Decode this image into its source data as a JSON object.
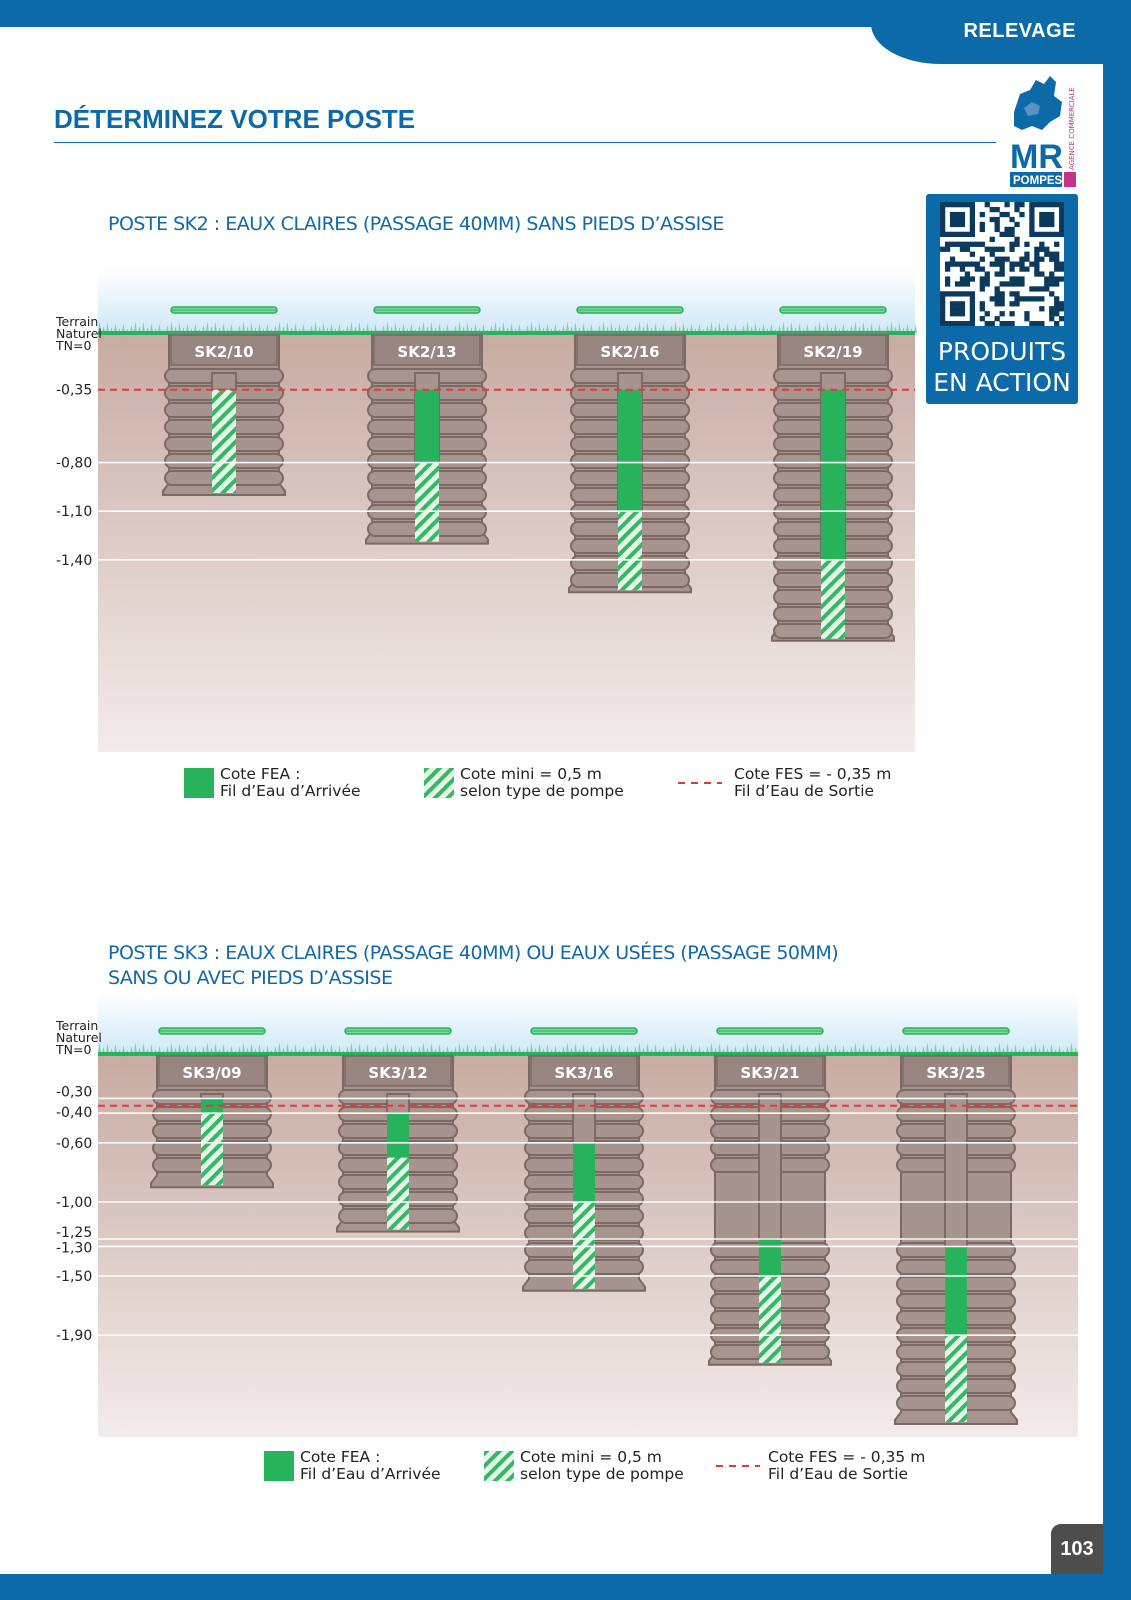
{
  "header": {
    "section": "RELEVAGE",
    "title": "DÉTERMINEZ VOTRE POSTE"
  },
  "brand": {
    "logo_text": "MR",
    "logo_sub": "POMPES",
    "logo_tagline": "AGENCE COMMERCIALE",
    "qr_caption_line1": "PRODUITS",
    "qr_caption_line2": "EN ACTION"
  },
  "colors": {
    "brand_blue": "#0d6aa8",
    "fea_green": "#27b35b",
    "fes_red": "#e03a3e",
    "tank_brown": "#a8948e"
  },
  "sections": [
    {
      "title_lines": [
        "POSTE SK2 : EAUX CLAIRES (PASSAGE 40MM) SANS PIEDS D’ASSISE"
      ],
      "ground_label": [
        "Terrain",
        "Naturel",
        "TN=0"
      ],
      "depth_levels": [
        {
          "label": "-0,35",
          "value": -0.35,
          "fes": true
        },
        {
          "label": "-0,80",
          "value": -0.8
        },
        {
          "label": "-1,10",
          "value": -1.1
        },
        {
          "label": "-1,40",
          "value": -1.4
        }
      ],
      "posts": [
        {
          "name": "SK2/10",
          "depth": 1.0,
          "fea": -0.35,
          "mini": 0.5
        },
        {
          "name": "SK2/13",
          "depth": 1.3,
          "fea": -0.8,
          "mini": 0.5
        },
        {
          "name": "SK2/16",
          "depth": 1.6,
          "fea": -1.1,
          "mini": 0.5
        },
        {
          "name": "SK2/19",
          "depth": 1.9,
          "fea": -1.4,
          "mini": 0.5
        }
      ],
      "legend": {
        "fea_line1": "Cote FEA :",
        "fea_line2": "Fil d’Eau d’Arrivée",
        "mini_line1": "Cote mini = 0,5 m",
        "mini_line2": "selon type de pompe",
        "fes_line1": "Cote FES = - 0,35 m",
        "fes_line2": "Fil d’Eau de Sortie"
      }
    },
    {
      "title_lines": [
        "POSTE SK3 : EAUX CLAIRES (PASSAGE 40MM) OU EAUX USÉES (PASSAGE 50MM)",
        "SANS OU AVEC PIEDS D’ASSISE"
      ],
      "ground_label": [
        "Terrain",
        "Naturel",
        "TN=0"
      ],
      "depth_levels": [
        {
          "label": "-0,30",
          "value": -0.3
        },
        {
          "label": "-0,40",
          "value": -0.4
        },
        {
          "label": "-0,60",
          "value": -0.6
        },
        {
          "label": "-1,00",
          "value": -1.0
        },
        {
          "label": "-1,25",
          "value": -1.25
        },
        {
          "label": "-1,30",
          "value": -1.3
        },
        {
          "label": "-1,50",
          "value": -1.5
        },
        {
          "label": "-1,90",
          "value": -1.9
        }
      ],
      "posts": [
        {
          "name": "SK3/09",
          "depth": 0.9,
          "fea": -0.3,
          "mini": 0.5
        },
        {
          "name": "SK3/12",
          "depth": 1.2,
          "fea": -0.4,
          "mini": 0.5
        },
        {
          "name": "SK3/16",
          "depth": 1.6,
          "fea": -0.6,
          "mini": 0.5
        },
        {
          "name": "SK3/21",
          "depth": 2.1,
          "fea": -1.25,
          "mini": 0.5
        },
        {
          "name": "SK3/25",
          "depth": 2.5,
          "fea": -1.3,
          "mini": 0.5
        }
      ],
      "legend": {
        "fea_line1": "Cote FEA :",
        "fea_line2": "Fil d’Eau d’Arrivée",
        "mini_line1": "Cote mini = 0,5 m",
        "mini_line2": "selon type de pompe",
        "fes_line1": "Cote FES = - 0,35 m",
        "fes_line2": "Fil d’Eau de Sortie"
      }
    }
  ],
  "page_number": "103"
}
